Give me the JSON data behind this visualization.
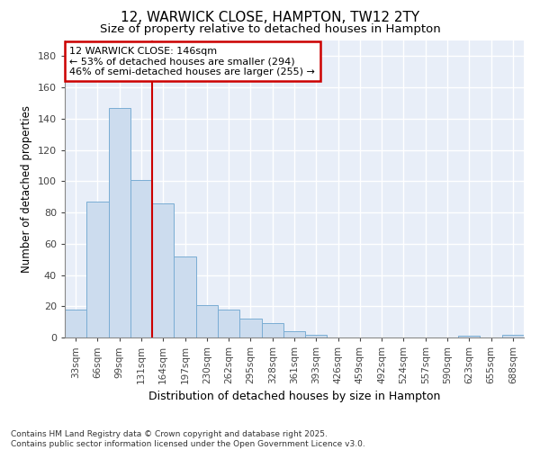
{
  "title_line1": "12, WARWICK CLOSE, HAMPTON, TW12 2TY",
  "title_line2": "Size of property relative to detached houses in Hampton",
  "xlabel": "Distribution of detached houses by size in Hampton",
  "ylabel": "Number of detached properties",
  "bar_color": "#ccdcee",
  "bar_edge_color": "#7aadd4",
  "background_color": "#e8eef8",
  "grid_color": "#ffffff",
  "vline_color": "#cc0000",
  "annotation_text": "12 WARWICK CLOSE: 146sqm\n← 53% of detached houses are smaller (294)\n46% of semi-detached houses are larger (255) →",
  "annotation_box_edgecolor": "#cc0000",
  "categories": [
    "33sqm",
    "66sqm",
    "99sqm",
    "131sqm",
    "164sqm",
    "197sqm",
    "230sqm",
    "262sqm",
    "295sqm",
    "328sqm",
    "361sqm",
    "393sqm",
    "426sqm",
    "459sqm",
    "492sqm",
    "524sqm",
    "557sqm",
    "590sqm",
    "623sqm",
    "655sqm",
    "688sqm"
  ],
  "values": [
    18,
    87,
    147,
    101,
    86,
    52,
    21,
    18,
    12,
    9,
    4,
    2,
    0,
    0,
    0,
    0,
    0,
    0,
    1,
    0,
    2
  ],
  "ylim": [
    0,
    190
  ],
  "yticks": [
    0,
    20,
    40,
    60,
    80,
    100,
    120,
    140,
    160,
    180
  ],
  "vline_x_index": 3.5,
  "footer_line1": "Contains HM Land Registry data © Crown copyright and database right 2025.",
  "footer_line2": "Contains public sector information licensed under the Open Government Licence v3.0."
}
